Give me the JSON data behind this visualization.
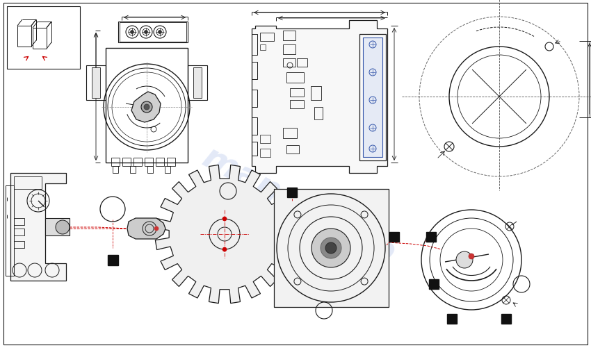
{
  "bg_color": "#ffffff",
  "line_color": "#1a1a1a",
  "red_dashed": "#cc0000",
  "watermark_color": "#c8d4f0",
  "fig_width": 8.5,
  "fig_height": 5.02,
  "dpi": 100
}
